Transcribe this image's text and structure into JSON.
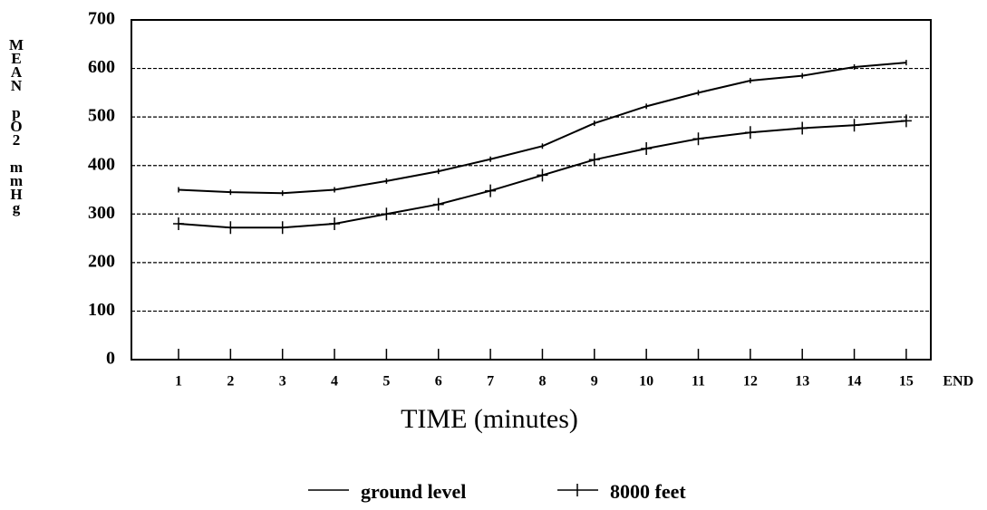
{
  "chart_data": {
    "type": "line",
    "xlabel": "TIME (minutes)",
    "ylabel": "MEAN pO2 mmHg",
    "categories": [
      "1",
      "2",
      "3",
      "4",
      "5",
      "6",
      "7",
      "8",
      "9",
      "10",
      "11",
      "12",
      "13",
      "14",
      "15",
      "END"
    ],
    "series": [
      {
        "name": "ground level",
        "color": "#000000",
        "marker": "none",
        "values": [
          350,
          345,
          343,
          350,
          368,
          388,
          413,
          440,
          487,
          522,
          550,
          575,
          585,
          603,
          612,
          null
        ]
      },
      {
        "name": "8000 feet",
        "color": "#000000",
        "marker": "plus",
        "values": [
          280,
          272,
          272,
          280,
          300,
          320,
          348,
          380,
          412,
          435,
          455,
          468,
          477,
          483,
          492,
          null
        ]
      }
    ],
    "ylim": [
      0,
      700
    ],
    "yticks": [
      0,
      100,
      200,
      300,
      400,
      500,
      600,
      700
    ],
    "grid": true
  }
}
